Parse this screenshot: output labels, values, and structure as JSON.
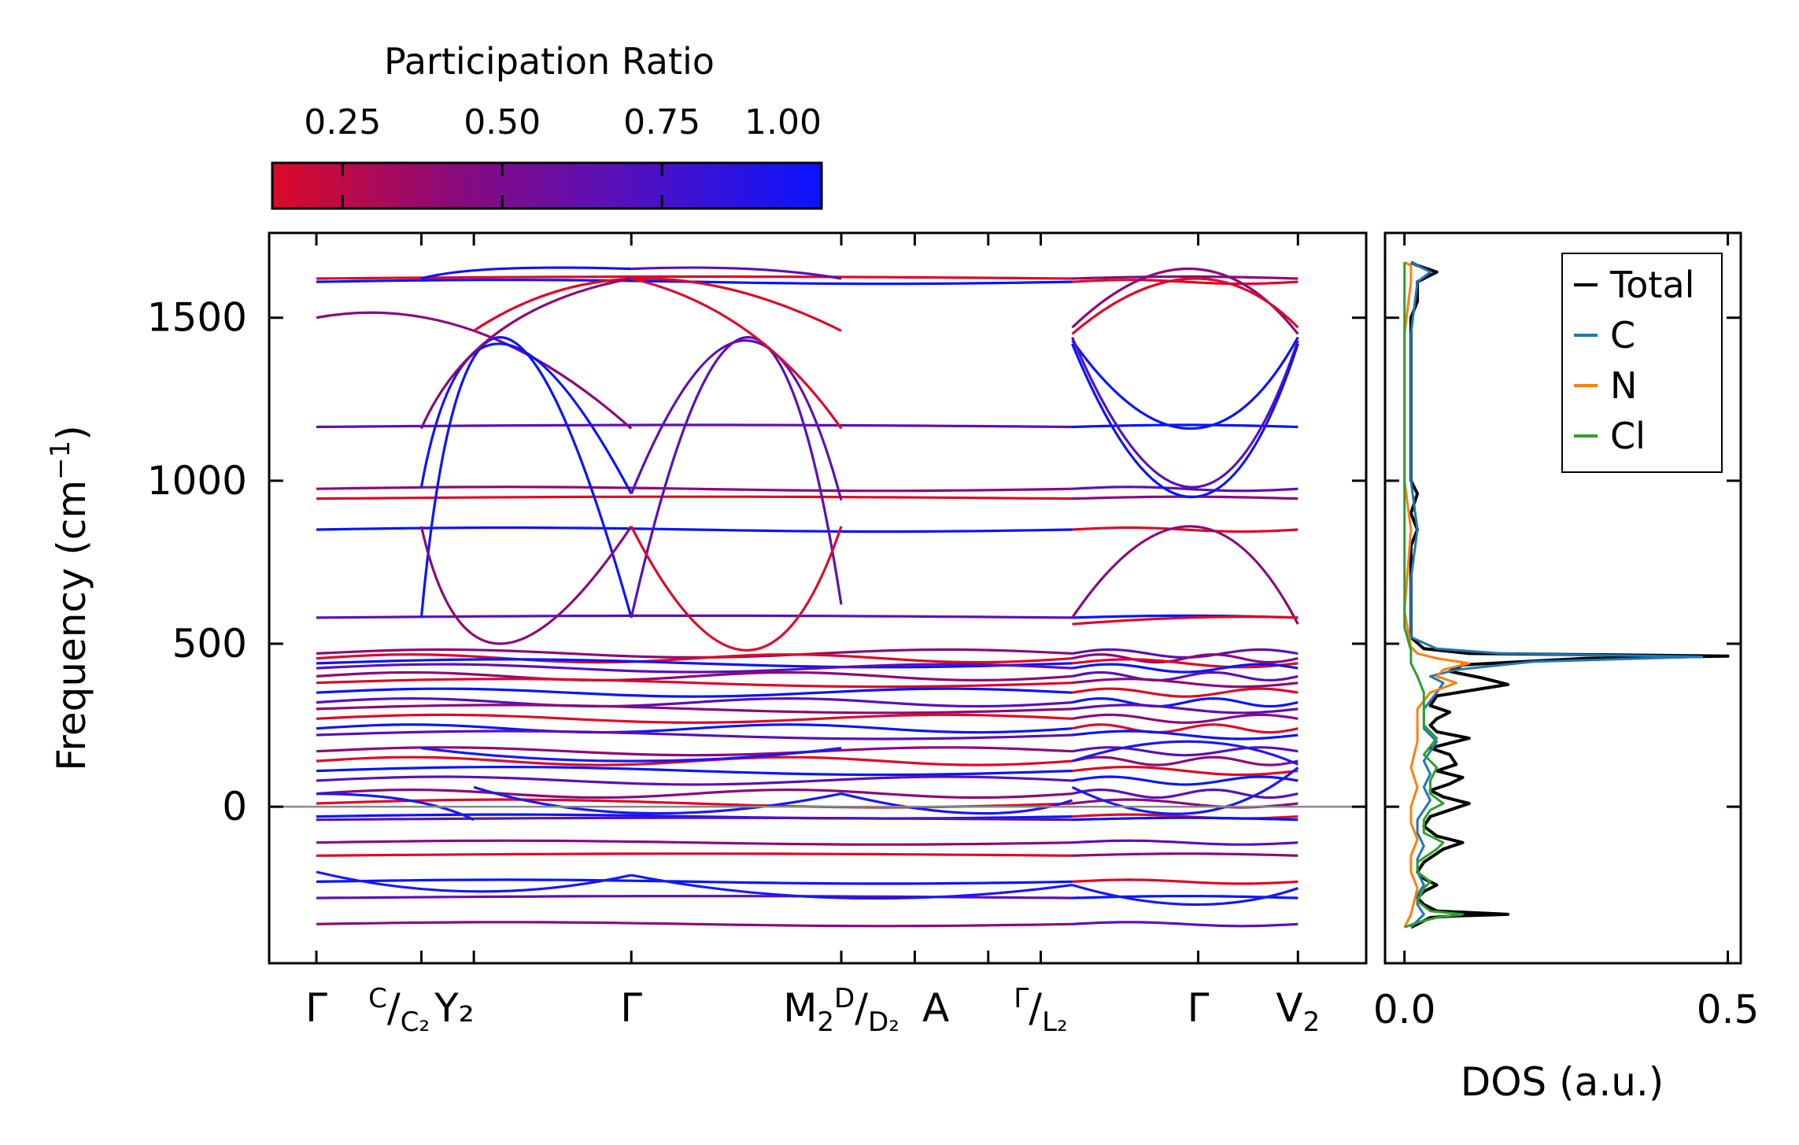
{
  "chart_data": [
    {
      "type": "line",
      "title": "",
      "ylabel": "Frequency (cm$^{-1}$)",
      "ylabel_parts": {
        "main": "Frequency (cm",
        "sup": "−1",
        "close": ")"
      },
      "ylim": [
        -480,
        1760
      ],
      "yticks": [
        0,
        500,
        1000,
        1500
      ],
      "ytick_labels": [
        "0",
        "500",
        "1000",
        "1500"
      ],
      "path_labels": [
        {
          "x": 0.0,
          "main": "Γ",
          "sub": ""
        },
        {
          "x": 1.0,
          "sup": "C",
          "main": "/",
          "sub": "C₂",
          "suffix": "Y₂"
        },
        {
          "x": 3.0,
          "main": "Γ",
          "sub": ""
        },
        {
          "x": 5.0,
          "main": "M",
          "sub": "2",
          "sup2": "D",
          "mid": "/",
          "sub2": "D₂"
        },
        {
          "x": 5.9,
          "main": "A",
          "sub": ""
        },
        {
          "x": 6.9,
          "sup": "Γ",
          "main": "/",
          "sub": "L₂"
        },
        {
          "x": 8.4,
          "main": "Γ",
          "sub": ""
        },
        {
          "x": 9.35,
          "main": "V",
          "sub": "2"
        }
      ],
      "x_ticks": [
        0.0,
        1.0,
        1.5,
        3.0,
        5.0,
        5.7,
        6.4,
        6.9,
        8.4,
        9.35
      ],
      "x_range": [
        -0.45,
        10.0
      ],
      "segments": [
        [
          0.0,
          7.2
        ],
        [
          7.2,
          9.35
        ]
      ],
      "zero_line": 0,
      "flat_bands": [
        1620,
        1610,
        1165,
        975,
        945,
        850,
        580,
        470,
        455,
        440,
        425,
        400,
        380,
        350,
        320,
        300,
        270,
        240,
        220,
        170,
        140,
        110,
        80,
        40,
        10,
        -30,
        -40,
        -110,
        -150,
        -230,
        -280,
        -360
      ],
      "colorbar": {
        "label": "Participation Ratio",
        "range": [
          0.14,
          1.0
        ],
        "ticks": [
          0.25,
          0.5,
          0.75,
          1.0
        ],
        "tick_labels": [
          "0.25",
          "0.50",
          "0.75",
          "1.00"
        ],
        "colors": [
          "#dc0a28",
          "#8a0a7a",
          "#5a10b8",
          "#0a14ff"
        ]
      }
    },
    {
      "type": "line",
      "xlabel": "DOS (a.u.)",
      "xlim": [
        -0.03,
        0.52
      ],
      "xticks": [
        0.0,
        0.5
      ],
      "xtick_labels": [
        "0.0",
        "0.5"
      ],
      "ylim": [
        -480,
        1760
      ],
      "series": [
        {
          "name": "Total",
          "color": "#000000",
          "points": [
            [
              0.01,
              -370
            ],
            [
              0.02,
              -360
            ],
            [
              0.04,
              -340
            ],
            [
              0.08,
              -335
            ],
            [
              0.16,
              -330
            ],
            [
              0.05,
              -320
            ],
            [
              0.03,
              -300
            ],
            [
              0.02,
              -280
            ],
            [
              0.03,
              -260
            ],
            [
              0.05,
              -240
            ],
            [
              0.03,
              -220
            ],
            [
              0.02,
              -200
            ],
            [
              0.03,
              -170
            ],
            [
              0.06,
              -130
            ],
            [
              0.09,
              -110
            ],
            [
              0.05,
              -90
            ],
            [
              0.03,
              -60
            ],
            [
              0.04,
              -30
            ],
            [
              0.07,
              -10
            ],
            [
              0.1,
              10
            ],
            [
              0.06,
              30
            ],
            [
              0.04,
              50
            ],
            [
              0.07,
              70
            ],
            [
              0.09,
              90
            ],
            [
              0.05,
              110
            ],
            [
              0.08,
              130
            ],
            [
              0.07,
              160
            ],
            [
              0.04,
              180
            ],
            [
              0.1,
              210
            ],
            [
              0.05,
              230
            ],
            [
              0.04,
              250
            ],
            [
              0.05,
              270
            ],
            [
              0.07,
              290
            ],
            [
              0.04,
              310
            ],
            [
              0.05,
              340
            ],
            [
              0.16,
              375
            ],
            [
              0.12,
              395
            ],
            [
              0.07,
              415
            ],
            [
              0.09,
              435
            ],
            [
              0.28,
              455
            ],
            [
              0.5,
              462
            ],
            [
              0.1,
              470
            ],
            [
              0.03,
              485
            ],
            [
              0.01,
              520
            ],
            [
              0.01,
              600
            ],
            [
              0.01,
              700
            ],
            [
              0.01,
              800
            ],
            [
              0.02,
              850
            ],
            [
              0.01,
              900
            ],
            [
              0.02,
              960
            ],
            [
              0.01,
              1000
            ],
            [
              0.01,
              1100
            ],
            [
              0.01,
              1160
            ],
            [
              0.01,
              1300
            ],
            [
              0.01,
              1450
            ],
            [
              0.01,
              1500
            ],
            [
              0.02,
              1550
            ],
            [
              0.02,
              1610
            ],
            [
              0.03,
              1620
            ],
            [
              0.05,
              1640
            ],
            [
              0.02,
              1660
            ],
            [
              0.01,
              1670
            ]
          ]
        },
        {
          "name": "C",
          "color": "#1f77b4",
          "points": [
            [
              0.01,
              -370
            ],
            [
              0.02,
              -350
            ],
            [
              0.03,
              -330
            ],
            [
              0.02,
              -300
            ],
            [
              0.02,
              -270
            ],
            [
              0.03,
              -240
            ],
            [
              0.02,
              -200
            ],
            [
              0.02,
              -160
            ],
            [
              0.03,
              -120
            ],
            [
              0.02,
              -80
            ],
            [
              0.02,
              -40
            ],
            [
              0.03,
              -10
            ],
            [
              0.04,
              20
            ],
            [
              0.03,
              60
            ],
            [
              0.04,
              100
            ],
            [
              0.03,
              140
            ],
            [
              0.05,
              200
            ],
            [
              0.03,
              240
            ],
            [
              0.03,
              300
            ],
            [
              0.05,
              350
            ],
            [
              0.06,
              380
            ],
            [
              0.04,
              400
            ],
            [
              0.08,
              420
            ],
            [
              0.2,
              445
            ],
            [
              0.46,
              460
            ],
            [
              0.15,
              470
            ],
            [
              0.05,
              485
            ],
            [
              0.01,
              520
            ],
            [
              0.01,
              700
            ],
            [
              0.02,
              850
            ],
            [
              0.01,
              1000
            ],
            [
              0.01,
              1160
            ],
            [
              0.01,
              1450
            ],
            [
              0.02,
              1610
            ],
            [
              0.04,
              1640
            ],
            [
              0.02,
              1660
            ],
            [
              0.01,
              1670
            ]
          ]
        },
        {
          "name": "N",
          "color": "#ff7f0e",
          "points": [
            [
              0.0,
              -370
            ],
            [
              0.01,
              -330
            ],
            [
              0.02,
              -250
            ],
            [
              0.01,
              -200
            ],
            [
              0.01,
              -150
            ],
            [
              0.02,
              -100
            ],
            [
              0.01,
              -50
            ],
            [
              0.01,
              0
            ],
            [
              0.02,
              60
            ],
            [
              0.01,
              120
            ],
            [
              0.02,
              200
            ],
            [
              0.02,
              260
            ],
            [
              0.02,
              300
            ],
            [
              0.04,
              350
            ],
            [
              0.08,
              380
            ],
            [
              0.05,
              400
            ],
            [
              0.06,
              420
            ],
            [
              0.1,
              440
            ],
            [
              0.05,
              455
            ],
            [
              0.02,
              470
            ],
            [
              0.01,
              490
            ],
            [
              0.0,
              600
            ],
            [
              0.01,
              850
            ],
            [
              0.0,
              1000
            ],
            [
              0.0,
              1160
            ],
            [
              0.0,
              1450
            ],
            [
              0.01,
              1610
            ],
            [
              0.01,
              1660
            ],
            [
              0.0,
              1670
            ]
          ]
        },
        {
          "name": "Cl",
          "color": "#2ca02c",
          "points": [
            [
              0.0,
              -370
            ],
            [
              0.02,
              -355
            ],
            [
              0.05,
              -340
            ],
            [
              0.09,
              -330
            ],
            [
              0.04,
              -320
            ],
            [
              0.02,
              -290
            ],
            [
              0.03,
              -250
            ],
            [
              0.04,
              -230
            ],
            [
              0.02,
              -200
            ],
            [
              0.02,
              -170
            ],
            [
              0.05,
              -130
            ],
            [
              0.06,
              -110
            ],
            [
              0.03,
              -80
            ],
            [
              0.03,
              -40
            ],
            [
              0.04,
              -10
            ],
            [
              0.06,
              10
            ],
            [
              0.04,
              40
            ],
            [
              0.04,
              80
            ],
            [
              0.05,
              120
            ],
            [
              0.03,
              160
            ],
            [
              0.05,
              210
            ],
            [
              0.03,
              250
            ],
            [
              0.03,
              300
            ],
            [
              0.03,
              350
            ],
            [
              0.02,
              400
            ],
            [
              0.01,
              440
            ],
            [
              0.01,
              480
            ],
            [
              0.0,
              550
            ],
            [
              0.0,
              800
            ],
            [
              0.0,
              1100
            ],
            [
              0.0,
              1400
            ],
            [
              0.0,
              1620
            ],
            [
              0.0,
              1670
            ]
          ]
        }
      ],
      "legend": {
        "placement": "top-right",
        "entries": [
          "Total",
          "C",
          "N",
          "Cl"
        ]
      }
    }
  ]
}
